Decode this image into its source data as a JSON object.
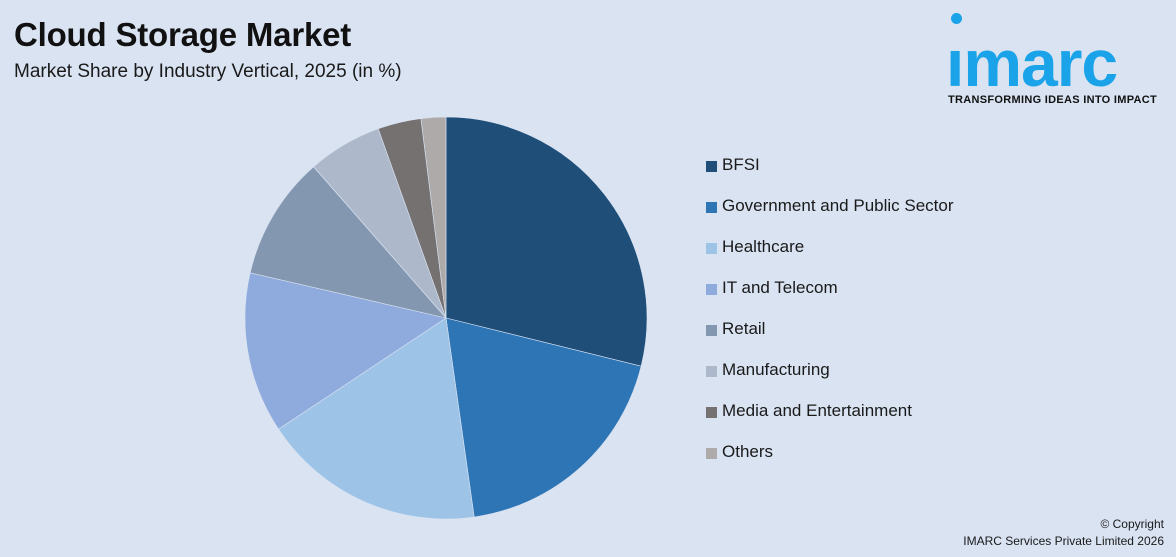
{
  "title": "Cloud Storage Market",
  "subtitle": "Market Share by Industry Vertical, 2025 (in %)",
  "logo": {
    "word": "imarc",
    "tagline": "TRANSFORMING IDEAS INTO IMPACT",
    "color": "#1aa3e8"
  },
  "copyright": {
    "line1": "© Copyright",
    "line2": "IMARC Services Private Limited 2026"
  },
  "chart_data": {
    "type": "pie",
    "title": "Cloud Storage Market",
    "subtitle": "Market Share by Industry Vertical, 2025 (in %)",
    "legend_position": "right",
    "start_angle": "12 o'clock, clockwise",
    "categories": [
      "BFSI",
      "Government and Public Sector",
      "Healthcare",
      "IT and Telecom",
      "Retail",
      "Manufacturing",
      "Media and Entertainment",
      "Others"
    ],
    "values": [
      29,
      19,
      18,
      13,
      10,
      6,
      3.5,
      2
    ],
    "colors": [
      "#1f4e79",
      "#2e75b6",
      "#9dc3e6",
      "#8faadc",
      "#8497b0",
      "#adb9ca",
      "#767171",
      "#aeaaaa"
    ]
  }
}
